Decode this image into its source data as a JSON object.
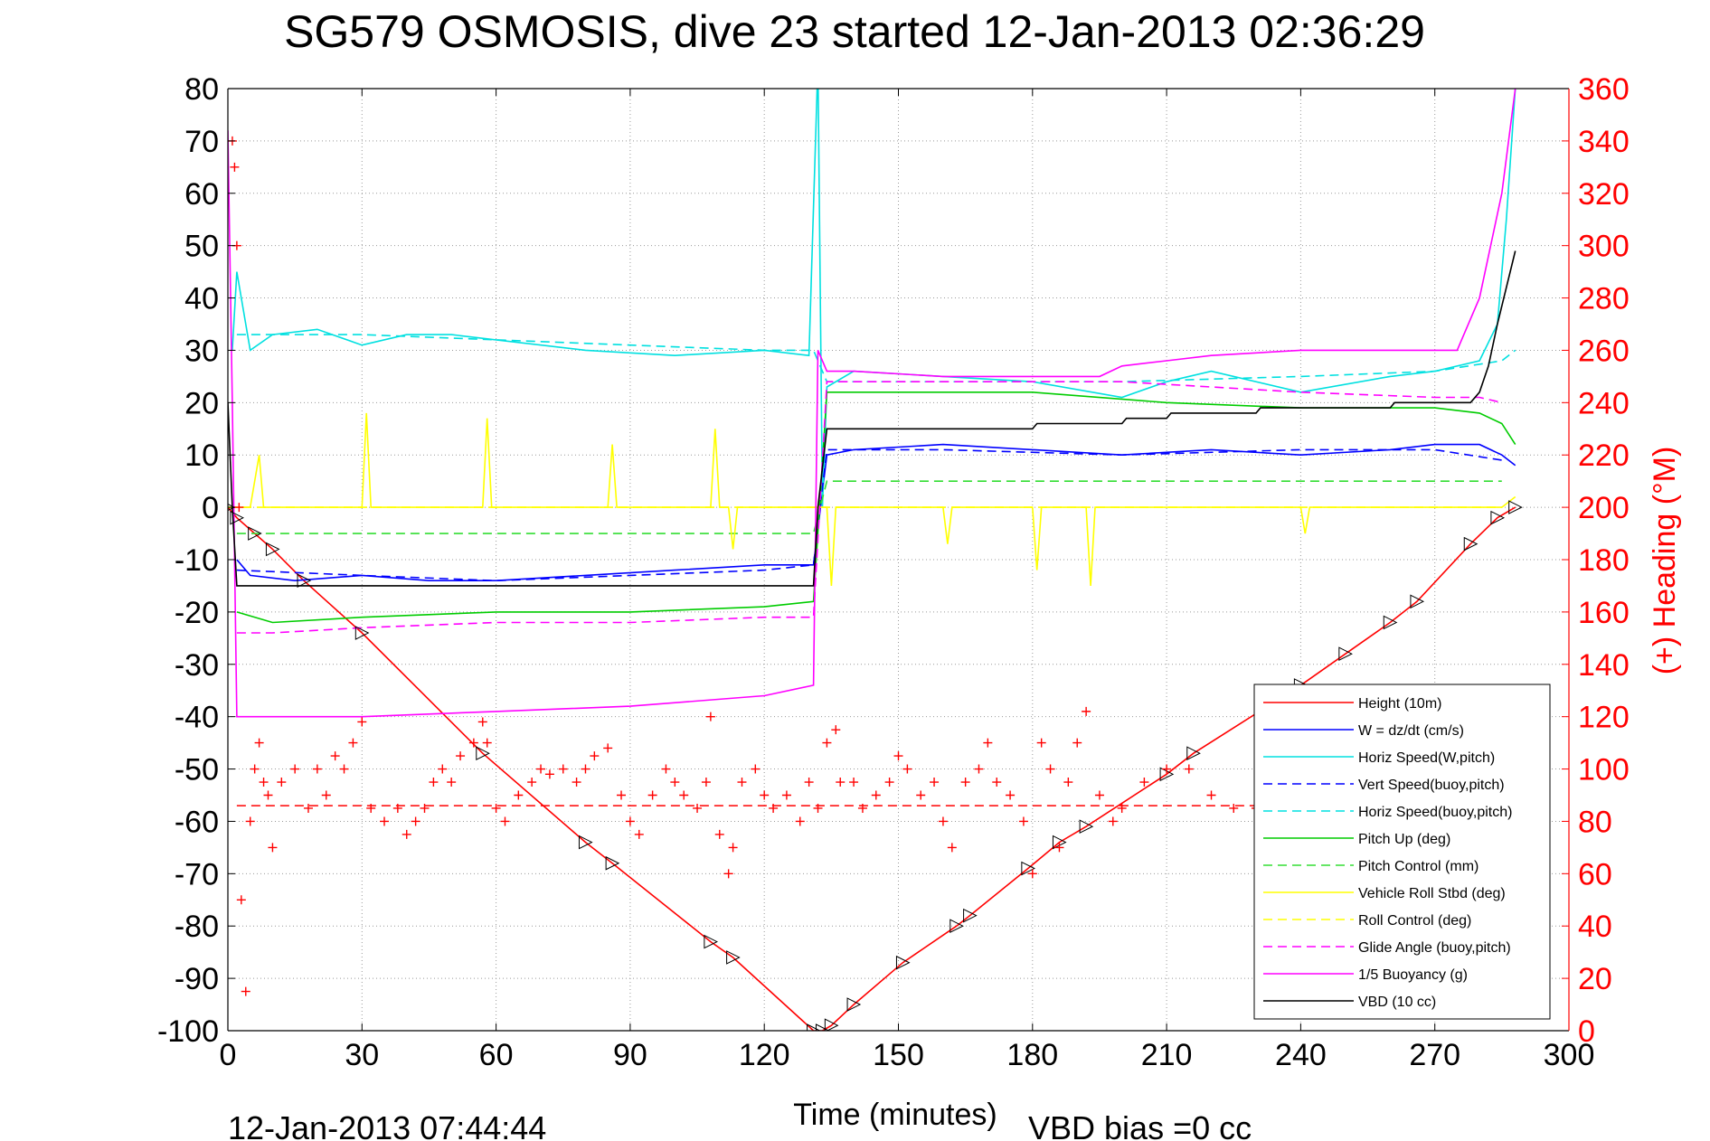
{
  "chart_data": {
    "type": "line",
    "title": "SG579 OSMOSIS, dive 23 started 12-Jan-2013 02:36:29",
    "xlabel": "Time (minutes)",
    "ylabel": "",
    "y2label": "(+) Heading (°M)",
    "xlim": [
      0,
      300
    ],
    "ylim": [
      -100,
      80
    ],
    "y2lim": [
      0,
      360
    ],
    "xticks": [
      0,
      30,
      60,
      90,
      120,
      150,
      180,
      210,
      240,
      270,
      300
    ],
    "yticks": [
      80,
      70,
      60,
      50,
      40,
      30,
      20,
      10,
      0,
      -10,
      -20,
      -30,
      -40,
      -50,
      -60,
      -70,
      -80,
      -90,
      -100
    ],
    "y2ticks": [
      360,
      340,
      320,
      300,
      280,
      260,
      240,
      220,
      200,
      180,
      160,
      140,
      120,
      100,
      80,
      60,
      40,
      20,
      0
    ],
    "grid": true,
    "legend_position": "bottom-right",
    "footer_left": "12-Jan-2013 07:44:44",
    "footer_right": "VBD bias =0 cc",
    "series": [
      {
        "name": "Height (10m)",
        "color": "#ff0000",
        "style": "solid",
        "x": [
          0,
          2,
          6,
          10,
          17,
          30,
          57,
          80,
          86,
          108,
          113,
          131,
          133,
          135,
          140,
          151,
          163,
          166,
          179,
          186,
          192,
          210,
          216,
          240,
          250,
          260,
          266,
          278,
          284,
          288
        ],
        "y": [
          0,
          -2,
          -5,
          -8,
          -14,
          -24,
          -47,
          -64,
          -68,
          -83,
          -86,
          -100,
          -100,
          -99,
          -95,
          -87,
          -80,
          -78,
          -69,
          -64,
          -61,
          -51,
          -47,
          -34,
          -28,
          -22,
          -18,
          -7,
          -2,
          0
        ]
      },
      {
        "name": "W = dz/dt (cm/s)",
        "color": "#0000ff",
        "style": "solid",
        "x": [
          2,
          5,
          15,
          30,
          45,
          60,
          80,
          100,
          120,
          131,
          134,
          140,
          160,
          180,
          200,
          220,
          240,
          260,
          270,
          280,
          285,
          288
        ],
        "y": [
          -10,
          -13,
          -14,
          -13,
          -14,
          -14,
          -13,
          -12,
          -11,
          -11,
          10,
          11,
          12,
          11,
          10,
          11,
          10,
          11,
          12,
          12,
          10,
          8
        ]
      },
      {
        "name": "Horiz Speed(W,pitch)",
        "color": "#00e0e0",
        "style": "solid",
        "x": [
          1,
          2,
          5,
          10,
          20,
          30,
          40,
          50,
          60,
          80,
          100,
          120,
          130,
          132,
          133,
          134,
          140,
          160,
          180,
          200,
          210,
          220,
          240,
          260,
          270,
          280,
          284,
          286,
          288
        ],
        "y": [
          30,
          45,
          30,
          33,
          34,
          31,
          33,
          33,
          32,
          30,
          29,
          30,
          29,
          85,
          0,
          23,
          26,
          25,
          24,
          21,
          24,
          26,
          22,
          25,
          26,
          28,
          35,
          55,
          80
        ]
      },
      {
        "name": "Vert Speed(buoy,pitch)",
        "color": "#0000ff",
        "style": "dashed",
        "x": [
          2,
          30,
          60,
          90,
          120,
          131,
          134,
          160,
          200,
          240,
          270,
          285
        ],
        "y": [
          -12,
          -13,
          -14,
          -13,
          -12,
          -11,
          11,
          11,
          10,
          11,
          11,
          9
        ]
      },
      {
        "name": "Horiz Speed(buoy,pitch)",
        "color": "#00e0e0",
        "style": "dashed",
        "x": [
          2,
          30,
          60,
          90,
          120,
          131,
          134,
          160,
          200,
          240,
          270,
          285,
          288
        ],
        "y": [
          33,
          33,
          32,
          31,
          30,
          30,
          24,
          24,
          24,
          25,
          26,
          28,
          30
        ]
      },
      {
        "name": "Pitch Up (deg)",
        "color": "#00cc00",
        "style": "solid",
        "x": [
          2,
          10,
          30,
          60,
          90,
          120,
          131,
          134,
          150,
          180,
          210,
          240,
          270,
          280,
          285,
          288
        ],
        "y": [
          -20,
          -22,
          -21,
          -20,
          -20,
          -19,
          -18,
          22,
          22,
          22,
          20,
          19,
          19,
          18,
          16,
          12
        ]
      },
      {
        "name": "Pitch Control (mm)",
        "color": "#33dd33",
        "style": "dashed",
        "x": [
          2,
          10,
          131,
          134,
          285
        ],
        "y": [
          -5,
          -5,
          -5,
          5,
          5
        ]
      },
      {
        "name": "Vehicle Roll Stbd (deg)",
        "color": "#ffff00",
        "style": "solid",
        "x": [
          0,
          5,
          7,
          8,
          9,
          30,
          31,
          32,
          57,
          58,
          59,
          85,
          86,
          87,
          108,
          109,
          110,
          112,
          113,
          114,
          134,
          135,
          136,
          160,
          161,
          162,
          180,
          181,
          182,
          192,
          193,
          194,
          240,
          241,
          242,
          285,
          288
        ],
        "y": [
          0,
          0,
          10,
          0,
          0,
          0,
          18,
          0,
          0,
          17,
          0,
          0,
          12,
          0,
          0,
          15,
          0,
          0,
          -8,
          0,
          0,
          -15,
          0,
          0,
          -7,
          0,
          0,
          -12,
          0,
          0,
          -15,
          0,
          0,
          -5,
          0,
          0,
          2
        ]
      },
      {
        "name": "Roll Control (deg)",
        "color": "#ffff00",
        "style": "dashed",
        "x": [
          0,
          5,
          131,
          134,
          285
        ],
        "y": [
          0,
          0,
          0,
          0,
          0
        ]
      },
      {
        "name": "Glide Angle (buoy,pitch)",
        "color": "#ff00ff",
        "style": "dashed",
        "x": [
          2,
          10,
          30,
          60,
          90,
          120,
          131,
          134,
          160,
          200,
          240,
          270,
          280,
          285
        ],
        "y": [
          -24,
          -24,
          -23,
          -22,
          -22,
          -21,
          -21,
          24,
          24,
          24,
          22,
          21,
          21,
          20
        ]
      },
      {
        "name": "1/5 Buoyancy (g)",
        "color": "#ff00ff",
        "style": "solid",
        "x": [
          0,
          1,
          2,
          5,
          30,
          60,
          90,
          120,
          131,
          132,
          134,
          140,
          160,
          180,
          195,
          200,
          210,
          220,
          240,
          260,
          275,
          280,
          285,
          288
        ],
        "y": [
          72,
          20,
          -40,
          -40,
          -40,
          -39,
          -38,
          -36,
          -34,
          30,
          26,
          26,
          25,
          25,
          25,
          27,
          28,
          29,
          30,
          30,
          30,
          40,
          60,
          80
        ]
      },
      {
        "name": "VBD (10 cc)",
        "color": "#000000",
        "style": "solid",
        "x": [
          0,
          1,
          2,
          5,
          131,
          132,
          134,
          180,
          181,
          200,
          201,
          210,
          211,
          230,
          231,
          260,
          261,
          278,
          280,
          282,
          284,
          286,
          288
        ],
        "y": [
          20,
          0,
          -15,
          -15,
          -15,
          0,
          15,
          15,
          16,
          16,
          17,
          17,
          18,
          18,
          19,
          19,
          20,
          20,
          22,
          27,
          35,
          42,
          49
        ]
      }
    ],
    "heading_series": {
      "name": "(+) Heading (°M)",
      "color": "#ff0000",
      "marker": "+",
      "x": [
        1,
        1.5,
        2,
        2.5,
        3,
        4,
        5,
        6,
        7,
        8,
        9,
        10,
        12,
        15,
        18,
        20,
        22,
        24,
        26,
        28,
        30,
        32,
        35,
        38,
        40,
        42,
        44,
        46,
        48,
        50,
        52,
        55,
        57,
        58,
        60,
        62,
        65,
        68,
        70,
        72,
        75,
        78,
        80,
        82,
        85,
        88,
        90,
        92,
        95,
        98,
        100,
        102,
        105,
        107,
        108,
        110,
        112,
        113,
        115,
        118,
        120,
        122,
        125,
        128,
        130,
        132,
        134,
        136,
        137,
        140,
        142,
        145,
        148,
        150,
        152,
        155,
        158,
        160,
        162,
        165,
        168,
        170,
        172,
        175,
        178,
        180,
        182,
        184,
        186,
        188,
        190,
        192,
        195,
        198,
        200,
        205,
        210,
        215,
        220,
        225,
        230
      ],
      "y": [
        340,
        330,
        300,
        200,
        50,
        15,
        80,
        100,
        110,
        95,
        90,
        70,
        95,
        100,
        85,
        100,
        90,
        105,
        100,
        110,
        118,
        85,
        80,
        85,
        75,
        80,
        85,
        95,
        100,
        95,
        105,
        110,
        118,
        110,
        85,
        80,
        90,
        95,
        100,
        98,
        100,
        95,
        100,
        105,
        108,
        90,
        80,
        75,
        90,
        100,
        95,
        90,
        85,
        95,
        120,
        75,
        60,
        70,
        95,
        100,
        90,
        85,
        90,
        80,
        95,
        85,
        110,
        115,
        95,
        95,
        85,
        90,
        95,
        105,
        100,
        90,
        95,
        80,
        70,
        95,
        100,
        110,
        95,
        90,
        80,
        60,
        110,
        100,
        70,
        95,
        110,
        122,
        90,
        80,
        85,
        95,
        100,
        100,
        90,
        85,
        85
      ]
    },
    "heading_mean": 86
  }
}
